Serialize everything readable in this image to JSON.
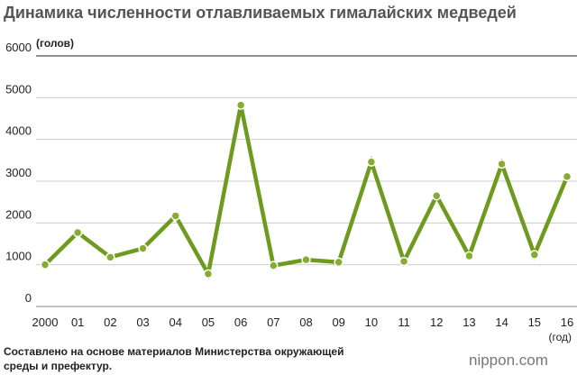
{
  "chart_data": {
    "type": "line",
    "title": "Динамика численности отлавливаемых гималайских медведей",
    "y_label": "(голов)",
    "x_label": "(год)",
    "categories": [
      "2000",
      "01",
      "02",
      "03",
      "04",
      "05",
      "06",
      "07",
      "08",
      "09",
      "10",
      "11",
      "12",
      "13",
      "14",
      "15",
      "16"
    ],
    "series": [
      {
        "name": "Численность",
        "color": "#6e9a1e",
        "values": [
          1000,
          1770,
          1180,
          1390,
          2170,
          780,
          4820,
          980,
          1120,
          1060,
          3460,
          1080,
          2650,
          1210,
          3410,
          1240,
          3110
        ]
      }
    ],
    "ylim": [
      0,
      6000
    ],
    "yticks": [
      0,
      1000,
      2000,
      3000,
      4000,
      5000,
      6000
    ],
    "grid": true,
    "source": "Составлено на основе материалов Министерства окружающей среды и префектур.",
    "logo": "nippon.com"
  }
}
